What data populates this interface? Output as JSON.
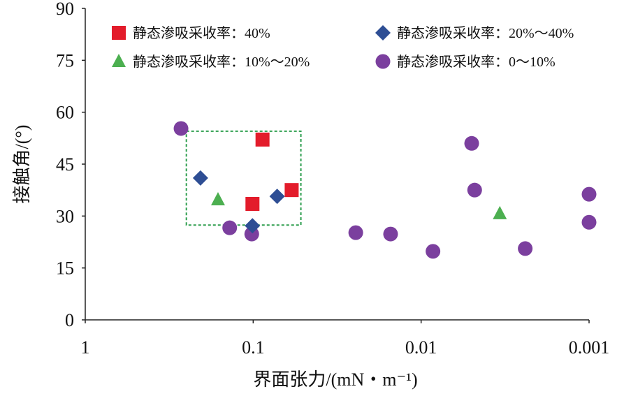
{
  "chart_data": {
    "type": "scatter",
    "title": "",
    "xlabel": "界面张力/(mN・m⁻¹)",
    "ylabel": "接触角/(°)",
    "x_scale": "log",
    "x_reversed": true,
    "xlim": [
      1,
      0.001
    ],
    "ylim": [
      0,
      90
    ],
    "x_ticks": [
      1,
      0.1,
      0.01,
      0.001
    ],
    "x_tick_labels": [
      "1",
      "0.1",
      "0.01",
      "0.001"
    ],
    "y_ticks": [
      0,
      15,
      30,
      45,
      60,
      75,
      90
    ],
    "y_tick_labels": [
      "0",
      "15",
      "30",
      "45",
      "60",
      "75",
      "90"
    ],
    "grid": false,
    "legend_position": "top",
    "series": [
      {
        "name": "静态渗吸采收率：40%",
        "marker": "square",
        "color": "#e31c2b",
        "points": [
          [
            0.088,
            52.1
          ],
          [
            0.101,
            33.5
          ],
          [
            0.059,
            37.5
          ]
        ]
      },
      {
        "name": "静态渗吸采收率：20%～40%",
        "marker": "diamond",
        "color": "#2e4e94",
        "points": [
          [
            0.206,
            41.0
          ],
          [
            0.101,
            27.2
          ],
          [
            0.072,
            35.7
          ]
        ]
      },
      {
        "name": "静态渗吸采收率：10%～20%",
        "marker": "triangle",
        "color": "#4caf50",
        "points": [
          [
            0.162,
            34.7
          ],
          [
            0.0034,
            30.7
          ]
        ]
      },
      {
        "name": "静态渗吸采收率：0～10%",
        "marker": "circle",
        "color": "#7b3f9e",
        "points": [
          [
            0.269,
            55.3
          ],
          [
            0.138,
            26.6
          ],
          [
            0.102,
            24.8
          ],
          [
            0.0245,
            25.2
          ],
          [
            0.0152,
            24.8
          ],
          [
            0.0085,
            19.8
          ],
          [
            0.005,
            51.0
          ],
          [
            0.0048,
            37.5
          ],
          [
            0.0024,
            20.6
          ],
          [
            0.001,
            36.3
          ],
          [
            0.001,
            28.2
          ]
        ]
      }
    ],
    "annotations": [
      {
        "type": "dashed-rectangle",
        "color": "#2e9e4f",
        "x_range": [
          0.25,
          0.052
        ],
        "y_range": [
          27.4,
          54.5
        ]
      }
    ]
  }
}
